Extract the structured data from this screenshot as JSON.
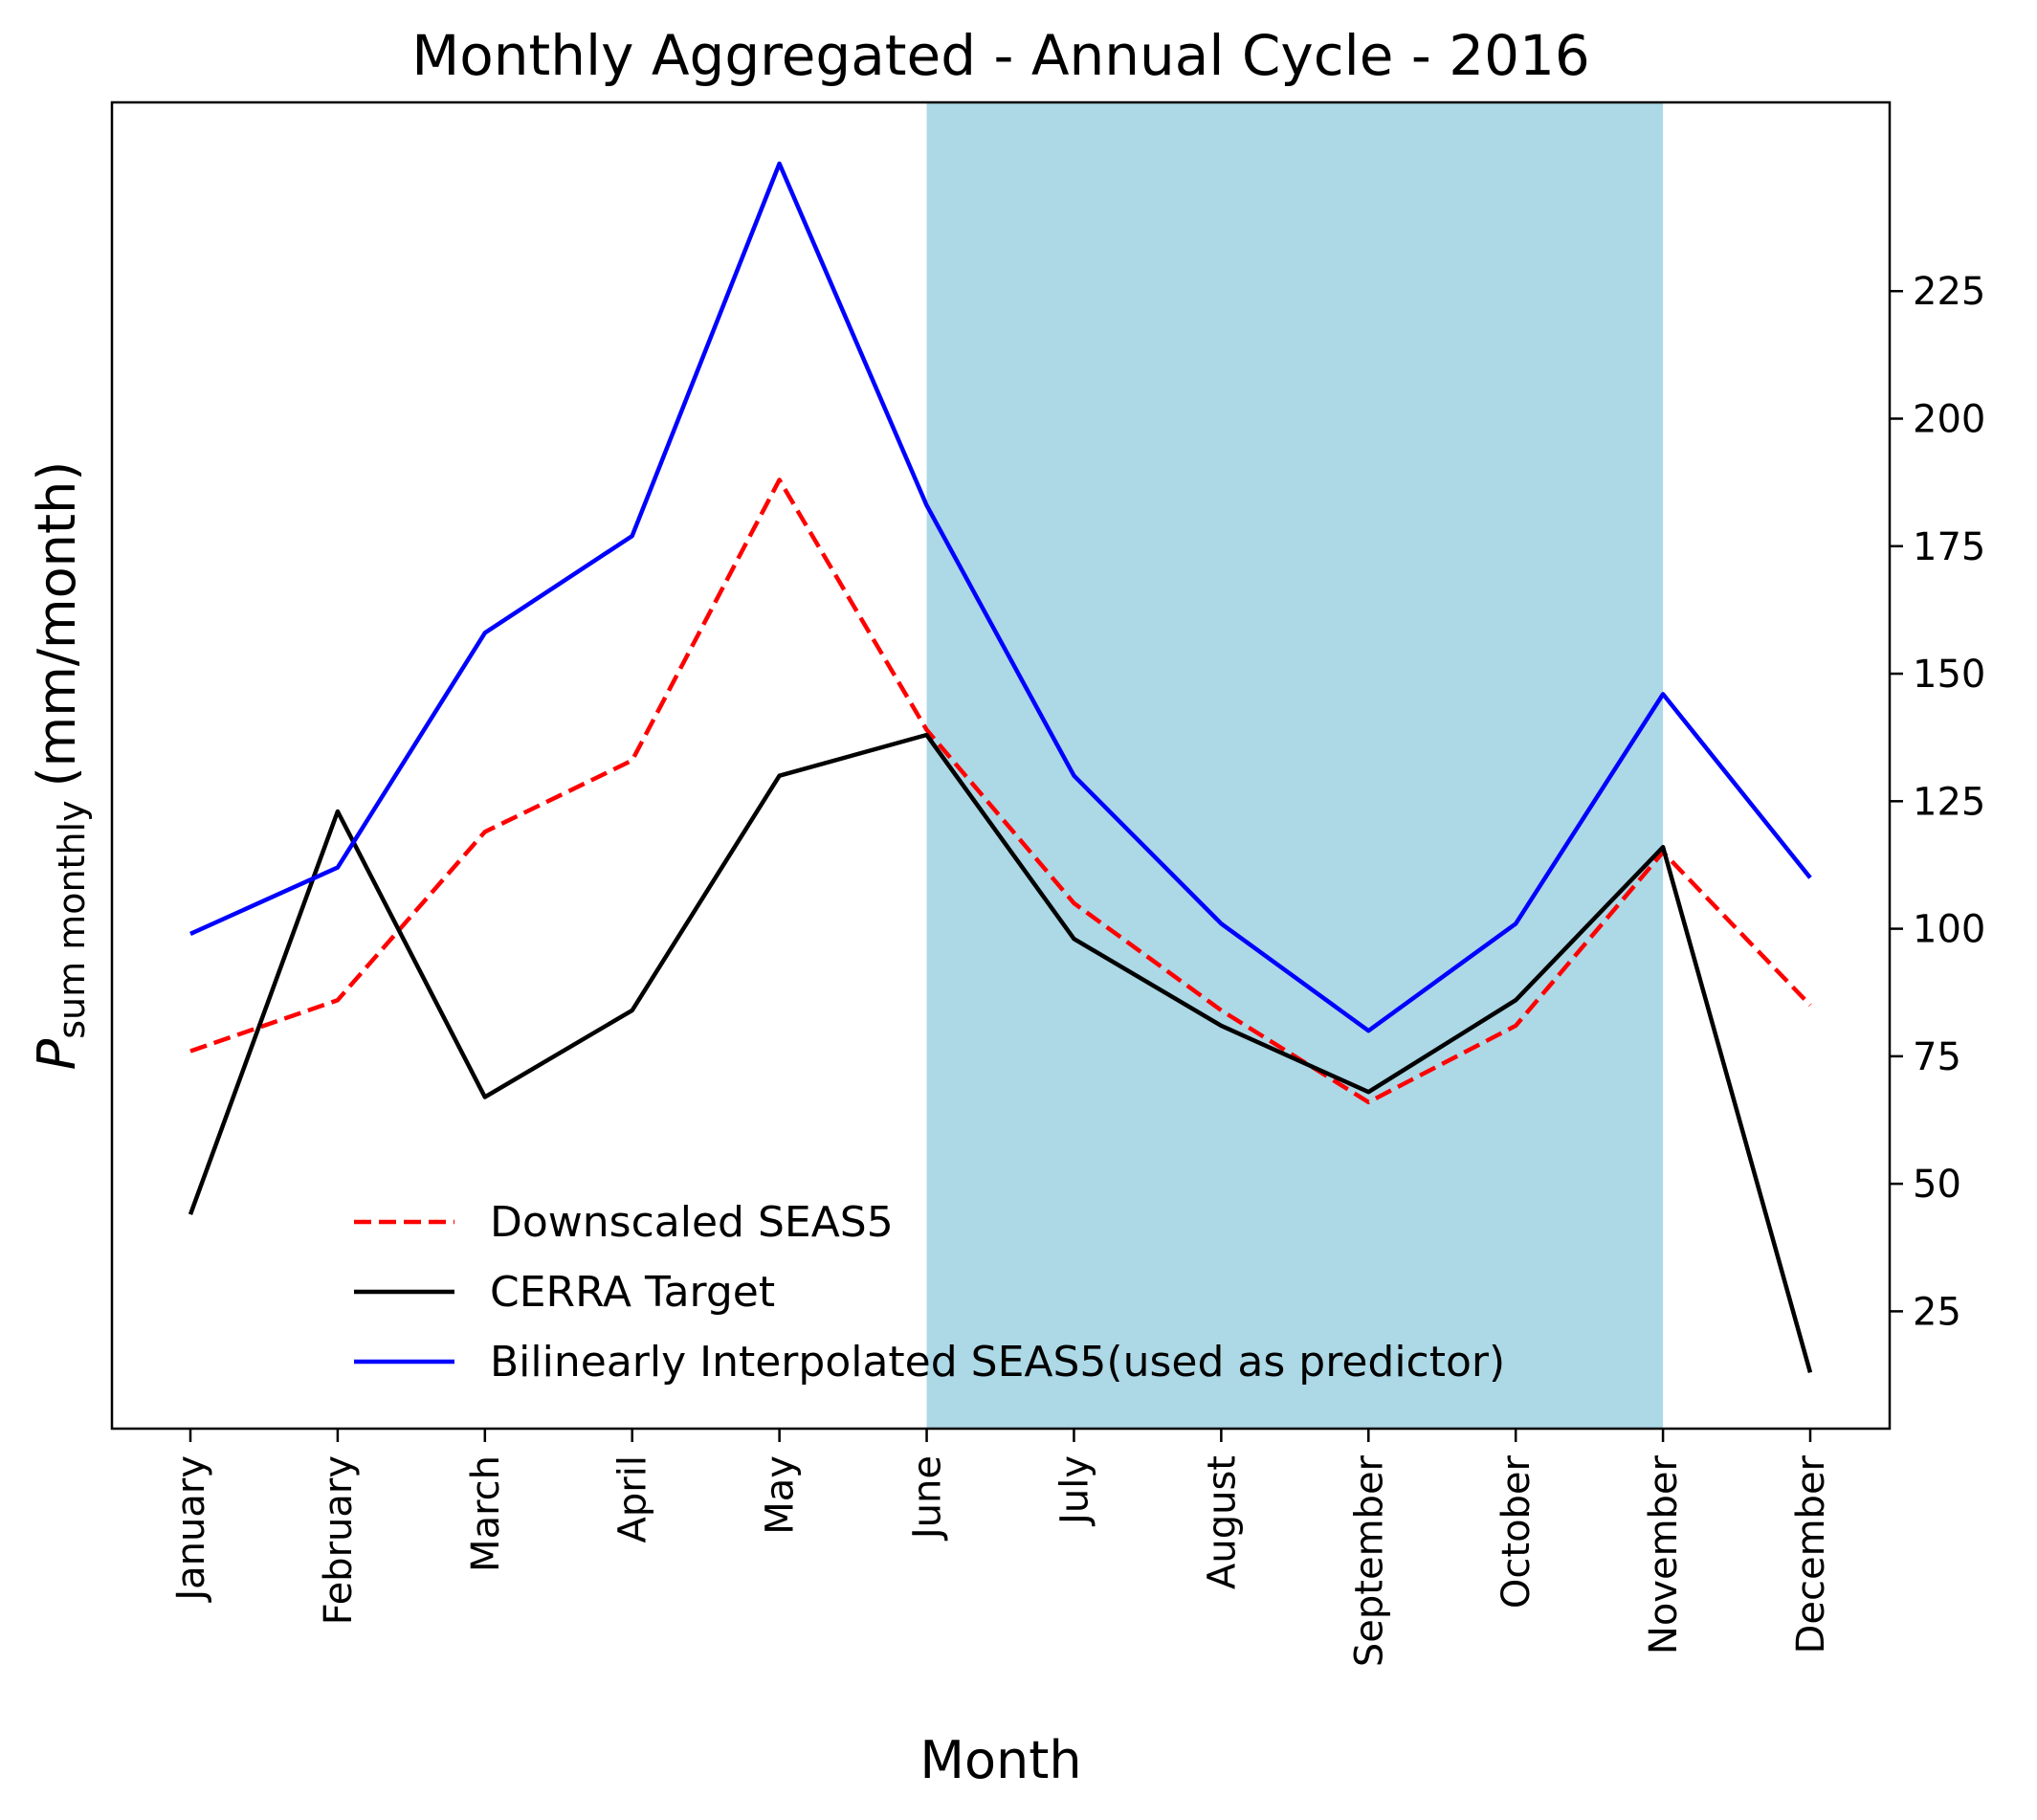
{
  "chart_data": {
    "type": "line",
    "title": "Monthly Aggregated - Annual Cycle - 2016",
    "xlabel": "Month",
    "ylabel_main": "P",
    "ylabel_sub": "sum monthly",
    "ylabel_unit": "(mm/month)",
    "y_axis_side": "right",
    "categories": [
      "January",
      "February",
      "March",
      "April",
      "May",
      "June",
      "July",
      "August",
      "September",
      "October",
      "November",
      "December"
    ],
    "yticks": [
      25,
      50,
      75,
      100,
      125,
      150,
      175,
      200,
      225
    ],
    "ylim": [
      2,
      262
    ],
    "shaded_region": {
      "from": "June",
      "to": "November",
      "color": "#add8e6"
    },
    "series": [
      {
        "name": "Downscaled SEAS5",
        "color": "#ff0000",
        "style": "dashed",
        "values": [
          76,
          86,
          119,
          133,
          188,
          139,
          105,
          84,
          66,
          81,
          115,
          85
        ]
      },
      {
        "name": "CERRA Target",
        "color": "#000000",
        "style": "solid",
        "values": [
          44,
          123,
          67,
          84,
          130,
          138,
          98,
          81,
          68,
          86,
          116,
          13
        ]
      },
      {
        "name": "Bilinearly Interpolated SEAS5(used as predictor)",
        "color": "#0000ff",
        "style": "solid",
        "values": [
          99,
          112,
          158,
          177,
          250,
          183,
          130,
          101,
          80,
          101,
          146,
          110
        ]
      }
    ],
    "legend_position": "lower-left",
    "grid": false
  }
}
